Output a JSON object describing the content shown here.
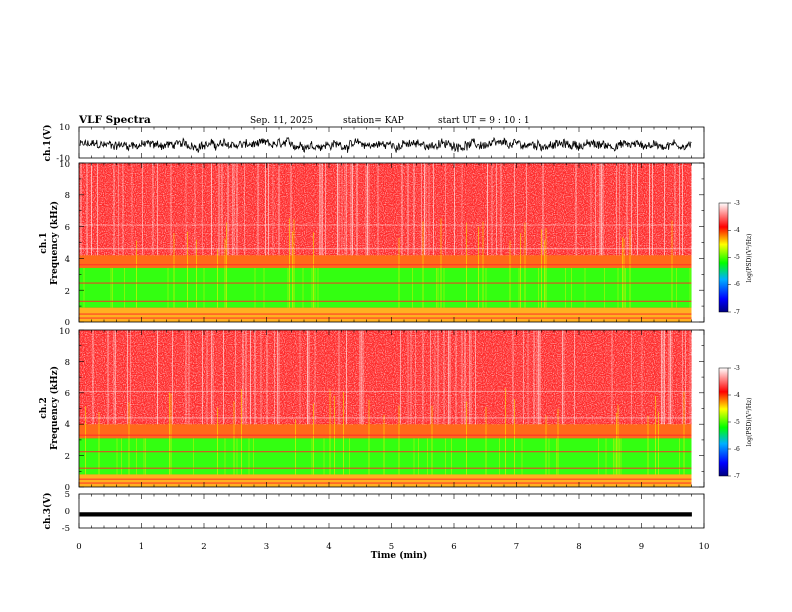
{
  "header": {
    "title": "VLF Spectra",
    "date": "Sep. 11, 2025",
    "station": "station= KAP",
    "start": "start  UT =  9 : 10 : 1"
  },
  "chart_data": [
    {
      "type": "line",
      "name": "ch.1 waveform",
      "ylabel": "ch.1(V)",
      "ylim": [
        -10,
        10
      ],
      "yticks": [
        "10",
        "-10"
      ],
      "xlim": [
        0,
        10
      ],
      "data_end_min": 9.8,
      "trace_center": -1.5,
      "trace_amplitude": 5.5
    },
    {
      "type": "heatmap",
      "name": "ch.1 spectrogram",
      "ylabel": "ch.1\nFrequency (kHz)",
      "ylabel_top": "ch.1",
      "ylabel_bottom": "Frequency (kHz)",
      "ylim": [
        0,
        10
      ],
      "yticks": [
        "0",
        "2",
        "4",
        "6",
        "8",
        "10"
      ],
      "xlim": [
        0,
        10
      ],
      "data_end_min": 9.8,
      "green_band_khz": [
        0.9,
        3.4
      ],
      "yellow_band_khz": [
        3.4,
        4.2
      ],
      "colorbar": {
        "label": "log(PSD)(V²/Hz)",
        "ticks": [
          "-3",
          "-4",
          "-5",
          "-6",
          "-7"
        ],
        "range": [
          -7,
          -3
        ]
      }
    },
    {
      "type": "heatmap",
      "name": "ch.2 spectrogram",
      "ylabel": "ch.2\nFrequency (kHz)",
      "ylabel_top": "ch.2",
      "ylabel_bottom": "Frequency (kHz)",
      "ylim": [
        0,
        10
      ],
      "yticks": [
        "0",
        "2",
        "4",
        "6",
        "8",
        "10"
      ],
      "xlim": [
        0,
        10
      ],
      "data_end_min": 9.8,
      "green_band_khz": [
        0.8,
        3.1
      ],
      "yellow_band_khz": [
        3.1,
        4.0
      ],
      "colorbar": {
        "label": "log(PSD)(V²/Hz)",
        "ticks": [
          "-3",
          "-4",
          "-5",
          "-6",
          "-7"
        ],
        "range": [
          -7,
          -3
        ]
      }
    },
    {
      "type": "line",
      "name": "ch.3 waveform",
      "ylabel": "ch.3(V)",
      "ylim": [
        -5,
        5
      ],
      "yticks": [
        "5",
        "0",
        "-5"
      ],
      "xlim": [
        0,
        10
      ],
      "data_end_min": 9.8,
      "trace_center": -1.0,
      "trace_amplitude": 0.5
    }
  ],
  "xaxis": {
    "label": "Time (min)",
    "ticks": [
      "0",
      "1",
      "2",
      "3",
      "4",
      "5",
      "6",
      "7",
      "8",
      "9",
      "10"
    ],
    "range": [
      0,
      10
    ]
  },
  "colors": {
    "trace": "#000000",
    "heat_red": "#ff2a2a",
    "heat_yellow": "#ffee00",
    "heat_green": "#33ff11",
    "colormap": [
      "#000080",
      "#0000ff",
      "#00b0ff",
      "#00ff00",
      "#ffff00",
      "#ff0000",
      "#ffffff"
    ]
  }
}
